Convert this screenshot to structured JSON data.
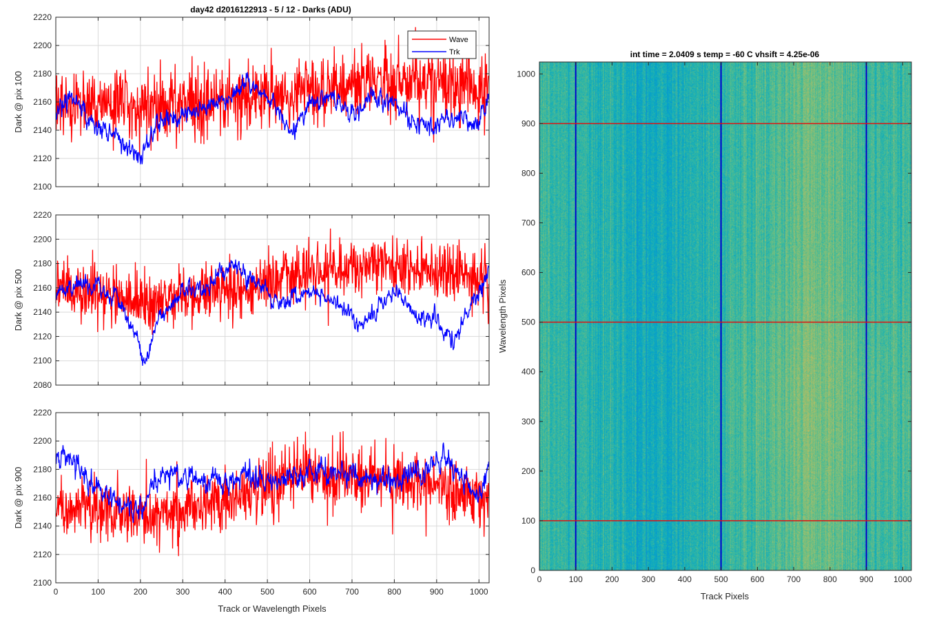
{
  "figure": {
    "title": "day42 d2016122913 - 5 / 12 - Darks (ADU)",
    "xlabel_shared": "Track or Wavelength Pixels"
  },
  "colors": {
    "wave": "#ff0000",
    "trk": "#0000ff",
    "grid": "#d9d9d9",
    "axis": "#262626"
  },
  "legend": {
    "entries": [
      "Wave",
      "Trk"
    ],
    "placement": "top-right of first panel"
  },
  "chart_data": [
    {
      "type": "line",
      "panel": 1,
      "ylabel": "Dark @ pix 100",
      "xlim": [
        0,
        1024
      ],
      "ylim": [
        2100,
        2220
      ],
      "xticks": [
        0,
        100,
        200,
        300,
        400,
        500,
        600,
        700,
        800,
        900,
        1000
      ],
      "yticks": [
        2100,
        2120,
        2140,
        2160,
        2180,
        2200,
        2220
      ],
      "grid": true,
      "series": [
        {
          "name": "Wave",
          "color": "red",
          "n": 1024,
          "trend": [
            [
              0,
              2160
            ],
            [
              200,
              2158
            ],
            [
              400,
              2160
            ],
            [
              600,
              2168
            ],
            [
              800,
              2176
            ],
            [
              1024,
              2172
            ]
          ],
          "noise_amp": 12
        },
        {
          "name": "Trk",
          "color": "blue",
          "n": 1024,
          "trend": [
            [
              0,
              2150
            ],
            [
              40,
              2165
            ],
            [
              80,
              2145
            ],
            [
              130,
              2138
            ],
            [
              170,
              2128
            ],
            [
              200,
              2120
            ],
            [
              240,
              2145
            ],
            [
              300,
              2152
            ],
            [
              380,
              2158
            ],
            [
              450,
              2172
            ],
            [
              500,
              2165
            ],
            [
              560,
              2140
            ],
            [
              600,
              2158
            ],
            [
              650,
              2165
            ],
            [
              700,
              2150
            ],
            [
              750,
              2165
            ],
            [
              800,
              2158
            ],
            [
              850,
              2145
            ],
            [
              900,
              2148
            ],
            [
              960,
              2148
            ],
            [
              1000,
              2145
            ],
            [
              1024,
              2165
            ]
          ],
          "noise_amp": 5
        }
      ]
    },
    {
      "type": "line",
      "panel": 2,
      "ylabel": "Dark @ pix 500",
      "xlim": [
        0,
        1024
      ],
      "ylim": [
        2080,
        2220
      ],
      "xticks": [
        0,
        100,
        200,
        300,
        400,
        500,
        600,
        700,
        800,
        900,
        1000
      ],
      "yticks": [
        2080,
        2100,
        2120,
        2140,
        2160,
        2180,
        2200,
        2220
      ],
      "grid": true,
      "series": [
        {
          "name": "Wave",
          "color": "red",
          "n": 1024,
          "trend": [
            [
              0,
              2162
            ],
            [
              200,
              2148
            ],
            [
              300,
              2152
            ],
            [
              400,
              2158
            ],
            [
              500,
              2162
            ],
            [
              600,
              2172
            ],
            [
              750,
              2180
            ],
            [
              900,
              2175
            ],
            [
              1024,
              2168
            ]
          ],
          "noise_amp": 12
        },
        {
          "name": "Trk",
          "color": "blue",
          "n": 1024,
          "trend": [
            [
              0,
              2155
            ],
            [
              50,
              2162
            ],
            [
              100,
              2165
            ],
            [
              150,
              2148
            ],
            [
              190,
              2120
            ],
            [
              210,
              2098
            ],
            [
              240,
              2132
            ],
            [
              300,
              2158
            ],
            [
              350,
              2158
            ],
            [
              420,
              2180
            ],
            [
              460,
              2168
            ],
            [
              520,
              2150
            ],
            [
              550,
              2145
            ],
            [
              600,
              2158
            ],
            [
              650,
              2152
            ],
            [
              720,
              2130
            ],
            [
              760,
              2140
            ],
            [
              800,
              2158
            ],
            [
              850,
              2138
            ],
            [
              900,
              2135
            ],
            [
              940,
              2115
            ],
            [
              980,
              2145
            ],
            [
              1024,
              2172
            ]
          ],
          "noise_amp": 5
        }
      ]
    },
    {
      "type": "line",
      "panel": 3,
      "ylabel": "Dark @ pix 900",
      "xlim": [
        0,
        1024
      ],
      "ylim": [
        2100,
        2220
      ],
      "xticks": [
        0,
        100,
        200,
        300,
        400,
        500,
        600,
        700,
        800,
        900,
        1000
      ],
      "yticks": [
        2100,
        2120,
        2140,
        2160,
        2180,
        2200,
        2220
      ],
      "grid": true,
      "series": [
        {
          "name": "Wave",
          "color": "red",
          "n": 1024,
          "trend": [
            [
              0,
              2158
            ],
            [
              200,
              2148
            ],
            [
              400,
              2158
            ],
            [
              500,
              2168
            ],
            [
              600,
              2176
            ],
            [
              800,
              2172
            ],
            [
              1024,
              2162
            ]
          ],
          "noise_amp": 11
        },
        {
          "name": "Trk",
          "color": "blue",
          "n": 1024,
          "trend": [
            [
              0,
              2190
            ],
            [
              40,
              2188
            ],
            [
              80,
              2170
            ],
            [
              130,
              2160
            ],
            [
              180,
              2152
            ],
            [
              200,
              2155
            ],
            [
              260,
              2180
            ],
            [
              300,
              2175
            ],
            [
              340,
              2170
            ],
            [
              420,
              2172
            ],
            [
              460,
              2175
            ],
            [
              520,
              2170
            ],
            [
              600,
              2178
            ],
            [
              700,
              2175
            ],
            [
              800,
              2172
            ],
            [
              880,
              2178
            ],
            [
              920,
              2190
            ],
            [
              960,
              2172
            ],
            [
              1000,
              2160
            ],
            [
              1024,
              2185
            ]
          ],
          "noise_amp": 6
        }
      ]
    },
    {
      "type": "heatmap",
      "panel": 4,
      "title": "int time = 2.0409 s    temp = -60 C    vhsift = 4.25e-06",
      "xlabel": "Track Pixels",
      "ylabel": "Wavelength Pixels",
      "xlim": [
        0,
        1024
      ],
      "ylim": [
        0,
        1024
      ],
      "xticks": [
        0,
        100,
        200,
        300,
        400,
        500,
        600,
        700,
        800,
        900,
        1000
      ],
      "yticks": [
        0,
        100,
        200,
        300,
        400,
        500,
        600,
        700,
        800,
        900,
        1000
      ],
      "colormap": "parula",
      "vertical_lines": {
        "color": "blue",
        "x": [
          100,
          500,
          900
        ]
      },
      "horizontal_lines": {
        "color": "red",
        "y": [
          100,
          500,
          900
        ]
      }
    }
  ]
}
